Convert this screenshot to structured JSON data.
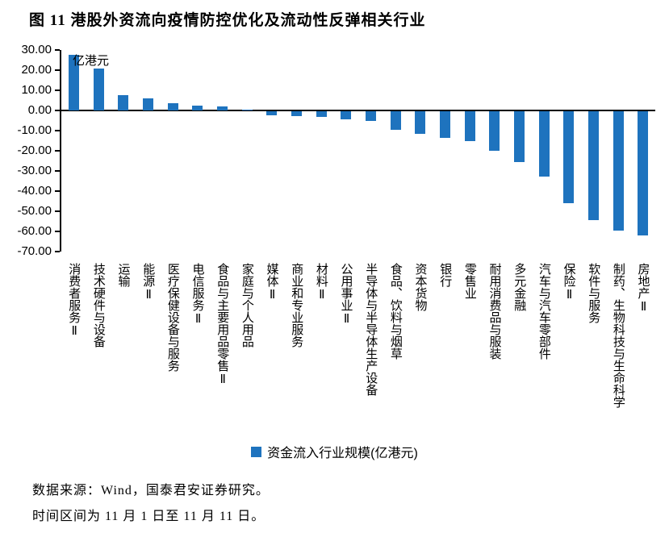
{
  "title": "图 11 港股外资流向疫情防控优化及流动性反弹相关行业",
  "chart_data": {
    "type": "bar",
    "title": "港股外资流向疫情防控优化及流动性反弹相关行业",
    "unit_label": "亿港元",
    "legend": "资金流入行业规模(亿港元)",
    "bar_color": "#1E73BE",
    "ylim": [
      -70,
      30
    ],
    "ytick_values": [
      30,
      20,
      10,
      0,
      -10,
      -20,
      -30,
      -40,
      -50,
      -60,
      -70
    ],
    "ytick_labels": [
      "30.00",
      "20.00",
      "10.00",
      "0.00",
      "-10.00",
      "-20.00",
      "-30.00",
      "-40.00",
      "-50.00",
      "-60.00",
      "-70.00"
    ],
    "categories": [
      "消费者服务Ⅱ",
      "技术硬件与设备",
      "运输",
      "能源Ⅱ",
      "医疗保健设备与服务",
      "电信服务Ⅱ",
      "食品与主要用品零售Ⅱ",
      "家庭与个人用品",
      "媒体Ⅱ",
      "商业和专业服务",
      "材料Ⅱ",
      "公用事业Ⅱ",
      "半导体与半导体生产设备",
      "食品、饮料与烟草",
      "资本货物",
      "银行",
      "零售业",
      "耐用消费品与服装",
      "多元金融",
      "汽车与汽车零部件",
      "保险Ⅱ",
      "软件与服务",
      "制药、生物科技与生命科学",
      "房地产Ⅱ"
    ],
    "values": [
      27.5,
      21,
      7.5,
      6,
      3.5,
      2.5,
      2,
      0.3,
      -2,
      -2.4,
      -2.8,
      -4,
      -4.7,
      -9,
      -11,
      -13,
      -14.7,
      -19.6,
      -25,
      -32.5,
      -45.5,
      -54,
      -59,
      -61.5
    ],
    "grid": false,
    "legend_position": "bottom-center"
  },
  "footer": {
    "line1": "数据来源：Wind，国泰君安证券研究。",
    "line2": "时间区间为 11 月 1 日至 11 月 11 日。"
  }
}
